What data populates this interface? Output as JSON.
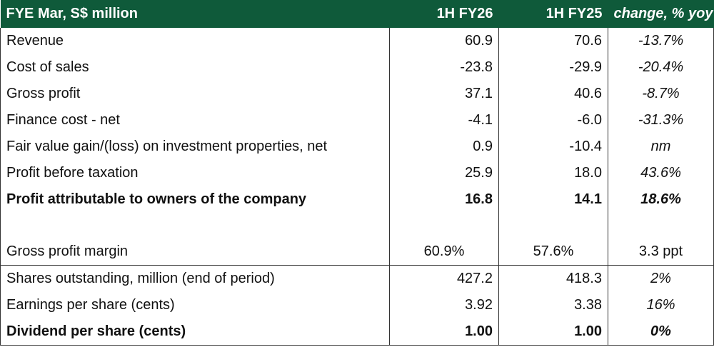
{
  "header": {
    "label": "FYE Mar, S$ million",
    "col1": "1H FY26",
    "col2": "1H FY25",
    "col3": "change, % yoy"
  },
  "rows": [
    {
      "label": "Revenue",
      "a": "60.9",
      "b": "70.6",
      "c": "-13.7%"
    },
    {
      "label": "Cost of sales",
      "a": "-23.8",
      "b": "-29.9",
      "c": "-20.4%"
    },
    {
      "label": "Gross profit",
      "a": "37.1",
      "b": "40.6",
      "c": "-8.7%"
    },
    {
      "label": "Finance cost - net",
      "a": "-4.1",
      "b": "-6.0",
      "c": "-31.3%"
    },
    {
      "label": "Fair value gain/(loss) on investment properties, net",
      "a": "0.9",
      "b": "-10.4",
      "c": "nm"
    },
    {
      "label": "Profit before taxation",
      "a": "25.9",
      "b": "18.0",
      "c": "43.6%"
    },
    {
      "label": "Profit attributable to owners of the company",
      "a": "16.8",
      "b": "14.1",
      "c": "18.6%"
    },
    {
      "label": "Gross profit margin",
      "a": "60.9%",
      "b": "57.6%",
      "c": "3.3 ppt"
    },
    {
      "label": "Shares outstanding, million (end of period)",
      "a": "427.2",
      "b": "418.3",
      "c": "2%"
    },
    {
      "label": "Earnings per share (cents)",
      "a": "3.92",
      "b": "3.38",
      "c": "16%"
    },
    {
      "label": "Dividend per share (cents)",
      "a": "1.00",
      "b": "1.00",
      "c": "0%"
    }
  ],
  "colors": {
    "header_bg": "#0f5a3a",
    "header_text": "#ffffff"
  }
}
